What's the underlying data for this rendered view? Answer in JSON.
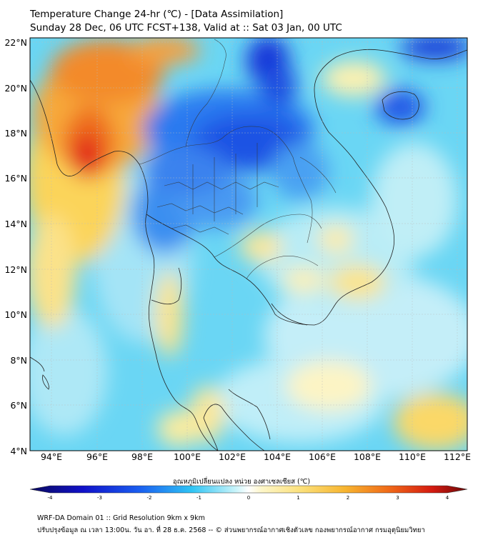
{
  "header": {
    "title": "Temperature Change 24-hr (℃) - [Data Assimilation]",
    "subtitle": "Sunday 28 Dec, 06 UTC FCST+138, Valid at :: Sat 03 Jan, 00 UTC"
  },
  "map": {
    "lat_range": [
      4,
      22.2
    ],
    "lon_range": [
      93,
      112.4
    ],
    "lat_ticks": [
      "22°N",
      "20°N",
      "18°N",
      "16°N",
      "14°N",
      "12°N",
      "10°N",
      "8°N",
      "6°N",
      "4°N"
    ],
    "lon_ticks": [
      "94°E",
      "96°E",
      "98°E",
      "100°E",
      "102°E",
      "104°E",
      "106°E",
      "108°E",
      "110°E",
      "112°E"
    ]
  },
  "colorbar": {
    "label": "อุณหภูมิเปลี่ยนแปลง หน่วย องศาเซลเซียส (℃)",
    "ticks": [
      "-4",
      "-3",
      "-2",
      "-1",
      "0",
      "1",
      "2",
      "3",
      "4"
    ],
    "range": [
      -4,
      4
    ]
  },
  "footer": {
    "line1": "WRF-DA Domain 01 :: Grid Resolution 9km x 9km",
    "line2": "ปรับปรุงข้อมูล ณ เวลา 13:00น. วัน อา. ที่ 28 ธ.ค. 2568 -- © ส่วนพยากรณ์อากาศเชิงตัวเลข กองพยากรณ์อากาศ กรมอุตุนิยมวิทยา"
  }
}
